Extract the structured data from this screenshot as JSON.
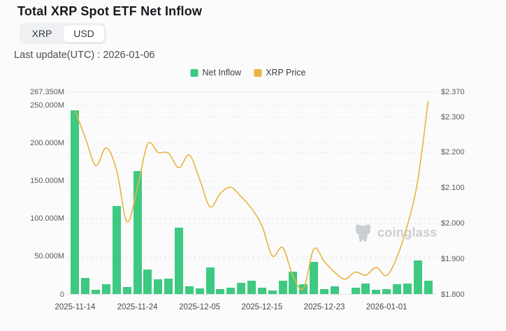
{
  "header": {
    "title": "Total XRP Spot ETF Net Inflow",
    "toggle": {
      "options": [
        "XRP",
        "USD"
      ],
      "selected": "USD"
    },
    "last_update": "Last update(UTC) : 2026-01-06"
  },
  "legend": [
    {
      "label": "Net Inflow",
      "color": "#3ec981"
    },
    {
      "label": "XRP Price",
      "color": "#e9b43c"
    }
  ],
  "watermark": "coinglass",
  "chart_data": {
    "type": "bar+line",
    "title": "Total XRP Spot ETF Net Inflow",
    "x_tick_labels": [
      "2025-11-14",
      "2025-11-24",
      "2025-12-05",
      "2025-12-15",
      "2025-12-23",
      "2026-01-01"
    ],
    "x_tick_bar_indices": [
      0,
      6,
      12,
      18,
      24,
      30
    ],
    "grid": "dashed-both-axes",
    "legend_position": "top-center",
    "series": [
      {
        "name": "Net Inflow",
        "type": "bar",
        "unit": "million USD",
        "color": "#3ec981",
        "values": [
          243,
          22,
          6,
          13,
          117,
          10,
          163,
          33,
          20,
          21,
          88,
          11,
          8,
          36,
          7,
          9,
          15,
          18,
          9,
          5,
          18,
          30,
          13,
          43,
          7,
          11,
          0,
          9,
          14,
          6,
          7,
          13,
          14,
          45,
          18
        ]
      },
      {
        "name": "XRP Price",
        "type": "line",
        "unit": "USD",
        "color": "#e9b43c",
        "values": [
          2.318,
          2.24,
          2.163,
          2.213,
          2.15,
          2.005,
          2.1,
          2.224,
          2.2,
          2.198,
          2.157,
          2.193,
          2.124,
          2.047,
          2.085,
          2.102,
          2.075,
          2.042,
          1.993,
          1.908,
          1.932,
          1.85,
          1.817,
          1.928,
          1.893,
          1.862,
          1.843,
          1.863,
          1.854,
          1.876,
          1.853,
          1.905,
          1.995,
          2.12,
          2.345
        ]
      }
    ],
    "left_axis": {
      "title": "Net Inflow",
      "min": 0,
      "max": 267.35,
      "tick_values": [
        267.35,
        250,
        200,
        150,
        100,
        50,
        0
      ],
      "tick_labels": [
        "267.350M",
        "250.000M",
        "200.000M",
        "150.000M",
        "100.000M",
        "50.000M",
        "0"
      ]
    },
    "right_axis": {
      "title": "XRP Price",
      "min": 1.8,
      "max": 2.37,
      "tick_values": [
        2.37,
        2.3,
        2.2,
        2.1,
        2.0,
        1.9,
        1.8
      ],
      "tick_labels": [
        "$2.370",
        "$2.300",
        "$2.200",
        "$2.100",
        "$2.000",
        "$1.900",
        "$1.800"
      ]
    }
  }
}
